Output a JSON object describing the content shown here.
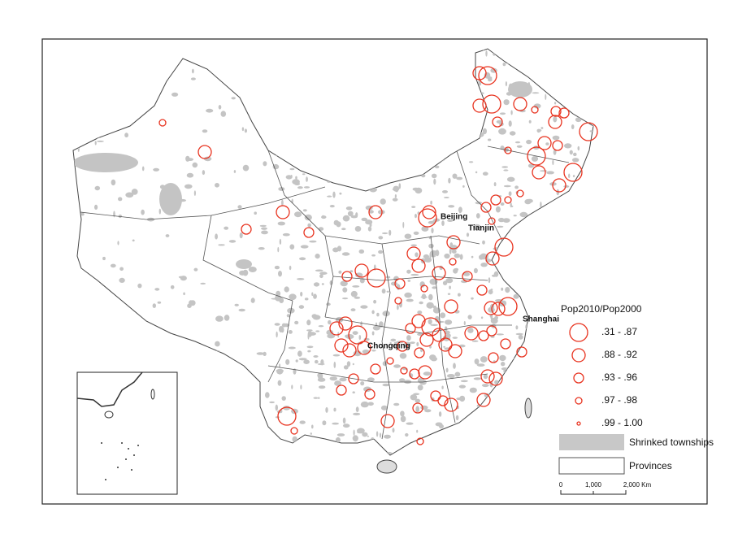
{
  "cities": [
    "Beijing",
    "Tianjin",
    "Shanghai",
    "Chongqing"
  ],
  "legend": {
    "title": "Pop2010/Pop2000",
    "classes": [
      ".31 - .87",
      ".88 - .92",
      ".93 - .96",
      ".97 - .98",
      ".99 - 1.00"
    ],
    "townships": "Shrinked townships",
    "provinces": "Provinces"
  },
  "scale_bar": {
    "labels": [
      "0",
      "1,000",
      "2,000 Km"
    ]
  }
}
